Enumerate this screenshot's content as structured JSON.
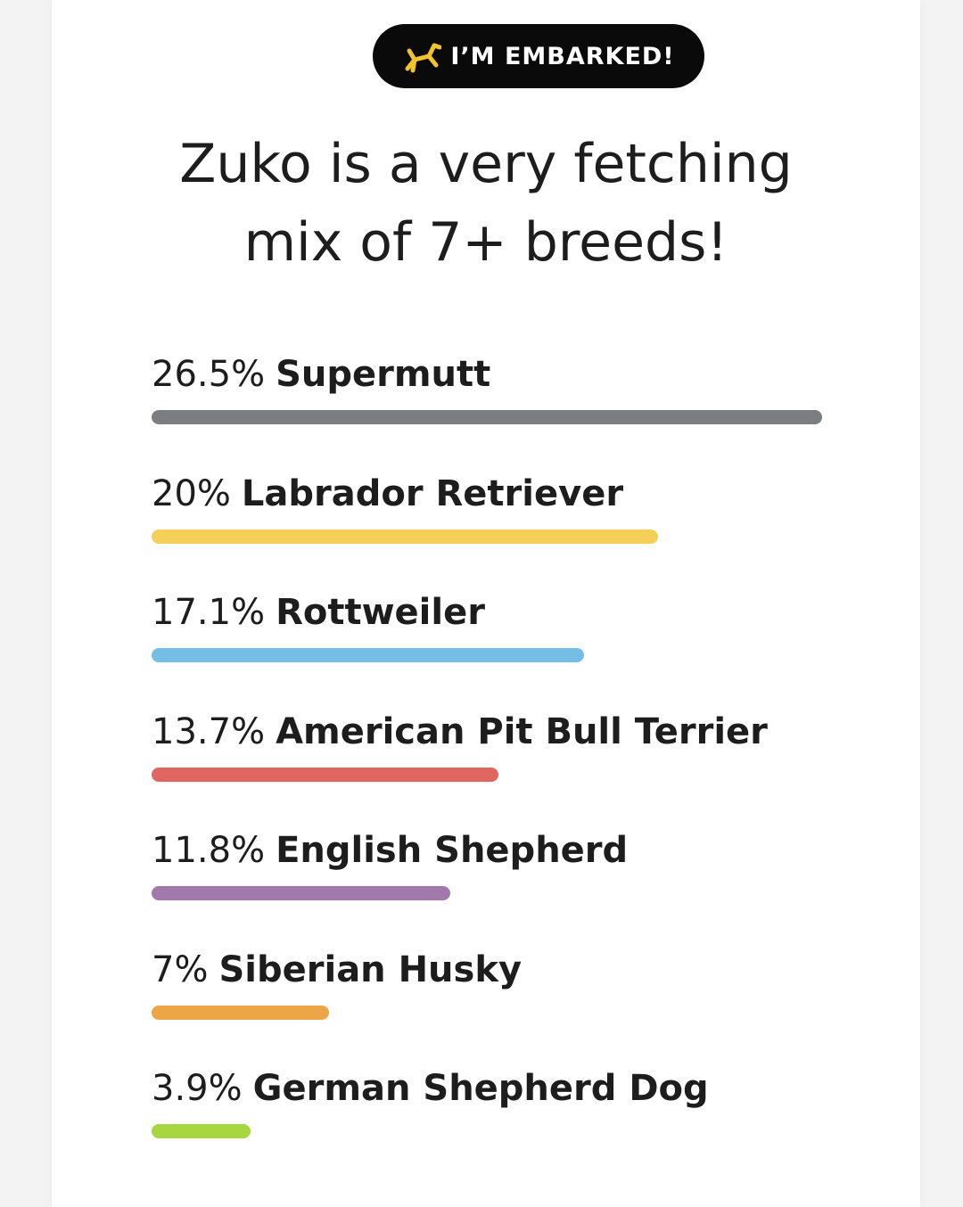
{
  "badge": {
    "label": "I’M EMBARKED!",
    "icon": "balloon-dog-icon",
    "icon_color": "#f2c230"
  },
  "headline": {
    "line1": "Zuko is a very fetching",
    "line2": "mix of 7+ breeds!"
  },
  "chart_data": {
    "type": "bar",
    "orientation": "horizontal",
    "categories": [
      "Supermutt",
      "Labrador Retriever",
      "Rottweiler",
      "American Pit Bull Terrier",
      "English Shepherd",
      "Siberian Husky",
      "German Shepherd Dog"
    ],
    "values": [
      26.5,
      20,
      17.1,
      13.7,
      11.8,
      7,
      3.9
    ],
    "labels": [
      "26.5%",
      "20%",
      "17.1%",
      "13.7%",
      "11.8%",
      "7%",
      "3.9%"
    ],
    "colors": [
      "#7b7d80",
      "#f4cf5a",
      "#74bde4",
      "#e06662",
      "#a179ac",
      "#eca645",
      "#a6d640"
    ],
    "grid": false,
    "legend": "none"
  }
}
